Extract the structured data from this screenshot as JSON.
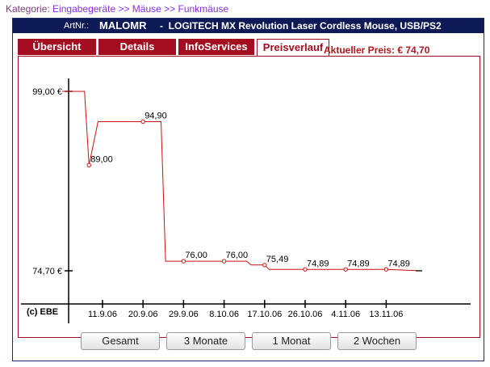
{
  "breadcrumb": {
    "label": "Kategorie:",
    "path": "Eingabegeräte >> Mäuse >> Funkmäuse"
  },
  "product_header": {
    "art_label": "ArtNr.:",
    "art_no": "MALOMR",
    "separator": "-",
    "product_name": "LOGITECH MX Revolution Laser Cordless Mouse, USB/PS2"
  },
  "tabs": [
    {
      "label": "Übersicht",
      "active": false
    },
    {
      "label": "Details",
      "active": false
    },
    {
      "label": "InfoServices",
      "active": false
    },
    {
      "label": "Preisverlauf",
      "active": true
    }
  ],
  "current_price": "Aktueller Preis: € 74,70",
  "chart_data": {
    "type": "line",
    "title": "",
    "source_label": "(c) EBE",
    "y_ticks": [
      "99,00 €",
      "74,70 €"
    ],
    "y_tick_values": [
      99.0,
      74.7
    ],
    "x_tick_labels": [
      "11.9.06",
      "20.9.06",
      "29.9.06",
      "8.10.06",
      "17.10.06",
      "26.10.06",
      "4.11.06",
      "13.11.06"
    ],
    "series": [
      {
        "points": [
          {
            "x": "2006-09-02",
            "y": 99.0
          },
          {
            "x": "2006-09-07",
            "y": 99.0
          },
          {
            "x": "2006-09-08",
            "y": 89.0,
            "label": "89,00"
          },
          {
            "x": "2006-09-10",
            "y": 94.9
          },
          {
            "x": "2006-09-20",
            "y": 94.9,
            "label": "94,90"
          },
          {
            "x": "2006-09-24",
            "y": 94.9
          },
          {
            "x": "2006-09-25",
            "y": 76.0
          },
          {
            "x": "2006-09-29",
            "y": 76.0,
            "label": "76,00"
          },
          {
            "x": "2006-10-08",
            "y": 76.0,
            "label": "76,00"
          },
          {
            "x": "2006-10-13",
            "y": 76.0
          },
          {
            "x": "2006-10-14",
            "y": 75.49
          },
          {
            "x": "2006-10-17",
            "y": 75.49,
            "label": "75,49"
          },
          {
            "x": "2006-10-18",
            "y": 74.89
          },
          {
            "x": "2006-10-26",
            "y": 74.89,
            "label": "74,89"
          },
          {
            "x": "2006-11-04",
            "y": 74.89,
            "label": "74,89"
          },
          {
            "x": "2006-11-13",
            "y": 74.89,
            "label": "74,89"
          },
          {
            "x": "2006-11-21",
            "y": 74.7
          }
        ]
      }
    ],
    "line_color": "#cc1111"
  },
  "range_buttons": [
    "Gesamt",
    "3 Monate",
    "1 Monat",
    "2 Wochen"
  ]
}
